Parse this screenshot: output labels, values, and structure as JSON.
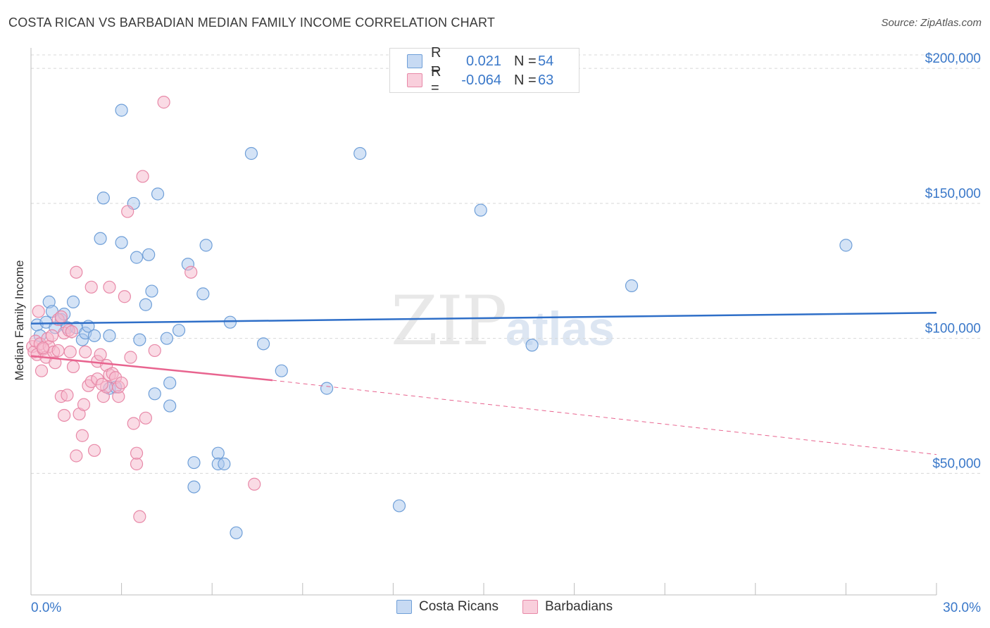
{
  "header": {
    "title": "COSTA RICAN VS BARBADIAN MEDIAN FAMILY INCOME CORRELATION CHART",
    "source": "Source: ZipAtlas.com"
  },
  "watermark": {
    "zip": "ZIP",
    "atlas": "atlas"
  },
  "legend_top": {
    "rows": [
      {
        "r_label": "R =",
        "r_value": "0.021",
        "n_label": "N =",
        "n_value": "54"
      },
      {
        "r_label": "R =",
        "r_value": "-0.064",
        "n_label": "N =",
        "n_value": "63"
      }
    ]
  },
  "legend_bottom": {
    "items": [
      {
        "label": "Costa Ricans"
      },
      {
        "label": "Barbadians"
      }
    ]
  },
  "colors": {
    "blue_fill": "#a9c8ee",
    "blue_stroke": "#6f9fd8",
    "blue_line": "#2f6fc8",
    "pink_fill": "#f5b8cc",
    "pink_stroke": "#e889a8",
    "pink_line": "#e8648f",
    "grid": "#d8d8d8",
    "axis_text": "#3a78c9"
  },
  "chart_data": {
    "type": "scatter",
    "title": "COSTA RICAN VS BARBADIAN MEDIAN FAMILY INCOME CORRELATION CHART",
    "xlabel": "",
    "ylabel": "Median Family Income",
    "xlim": [
      0,
      30
    ],
    "ylim": [
      5000,
      205000
    ],
    "x_tick_labels": [
      "0.0%",
      "30.0%"
    ],
    "y_ticks": [
      50000,
      100000,
      150000,
      200000
    ],
    "y_tick_labels": [
      "$50,000",
      "$100,000",
      "$150,000",
      "$200,000"
    ],
    "series": [
      {
        "name": "Costa Ricans",
        "r": 0.021,
        "n": 54,
        "trend": {
          "x": [
            0,
            30
          ],
          "y": [
            105500,
            109500
          ]
        },
        "points": [
          [
            0.2,
            105000
          ],
          [
            0.3,
            101000
          ],
          [
            0.5,
            106000
          ],
          [
            0.6,
            113500
          ],
          [
            0.7,
            110000
          ],
          [
            0.8,
            104000
          ],
          [
            1.0,
            107000
          ],
          [
            1.1,
            109000
          ],
          [
            1.2,
            104000
          ],
          [
            1.4,
            113500
          ],
          [
            1.5,
            104000
          ],
          [
            1.7,
            99500
          ],
          [
            1.8,
            102000
          ],
          [
            1.9,
            104500
          ],
          [
            2.1,
            101000
          ],
          [
            2.3,
            137000
          ],
          [
            2.4,
            152000
          ],
          [
            2.6,
            101000
          ],
          [
            2.6,
            81500
          ],
          [
            2.8,
            82000
          ],
          [
            3.0,
            184500
          ],
          [
            3.0,
            135500
          ],
          [
            3.4,
            150000
          ],
          [
            3.5,
            130000
          ],
          [
            3.6,
            99500
          ],
          [
            3.8,
            112500
          ],
          [
            3.9,
            131000
          ],
          [
            4.0,
            117500
          ],
          [
            4.1,
            79500
          ],
          [
            4.2,
            153500
          ],
          [
            4.5,
            100000
          ],
          [
            4.6,
            75000
          ],
          [
            4.6,
            83500
          ],
          [
            4.9,
            103000
          ],
          [
            5.2,
            127500
          ],
          [
            5.4,
            45000
          ],
          [
            5.4,
            54000
          ],
          [
            5.7,
            116500
          ],
          [
            5.8,
            134500
          ],
          [
            6.2,
            57500
          ],
          [
            6.2,
            53500
          ],
          [
            6.4,
            53500
          ],
          [
            6.6,
            106000
          ],
          [
            6.8,
            28000
          ],
          [
            7.3,
            168500
          ],
          [
            7.7,
            98000
          ],
          [
            8.3,
            88000
          ],
          [
            9.8,
            81500
          ],
          [
            10.9,
            168500
          ],
          [
            12.2,
            38000
          ],
          [
            14.9,
            147500
          ],
          [
            16.6,
            97500
          ],
          [
            19.9,
            119500
          ],
          [
            27.0,
            134500
          ]
        ]
      },
      {
        "name": "Barbadians",
        "r": -0.064,
        "n": 63,
        "trend": {
          "x": [
            0,
            8
          ],
          "y": [
            93500,
            84500
          ]
        },
        "trend_extrapolated": {
          "x": [
            8,
            30
          ],
          "y": [
            84500,
            57000
          ]
        },
        "points": [
          [
            0.05,
            97000
          ],
          [
            0.1,
            95000
          ],
          [
            0.15,
            99000
          ],
          [
            0.2,
            94000
          ],
          [
            0.25,
            110000
          ],
          [
            0.3,
            98000
          ],
          [
            0.35,
            88000
          ],
          [
            0.4,
            96000
          ],
          [
            0.5,
            93000
          ],
          [
            0.55,
            100000
          ],
          [
            0.6,
            97000
          ],
          [
            0.7,
            101000
          ],
          [
            0.75,
            95000
          ],
          [
            0.8,
            91000
          ],
          [
            0.9,
            107000
          ],
          [
            1.0,
            108000
          ],
          [
            1.0,
            78500
          ],
          [
            1.1,
            102000
          ],
          [
            1.1,
            71500
          ],
          [
            1.2,
            79000
          ],
          [
            1.25,
            103000
          ],
          [
            1.3,
            95000
          ],
          [
            1.4,
            89500
          ],
          [
            1.5,
            124500
          ],
          [
            1.5,
            56500
          ],
          [
            1.6,
            72000
          ],
          [
            1.7,
            64000
          ],
          [
            1.75,
            75500
          ],
          [
            1.8,
            95000
          ],
          [
            1.9,
            82500
          ],
          [
            2.0,
            84000
          ],
          [
            2.0,
            119000
          ],
          [
            2.1,
            58500
          ],
          [
            2.2,
            91500
          ],
          [
            2.2,
            85000
          ],
          [
            2.3,
            94000
          ],
          [
            2.4,
            78500
          ],
          [
            2.5,
            82000
          ],
          [
            2.5,
            90000
          ],
          [
            2.6,
            86500
          ],
          [
            2.6,
            119000
          ],
          [
            2.7,
            87000
          ],
          [
            2.8,
            85500
          ],
          [
            2.9,
            78500
          ],
          [
            2.9,
            82000
          ],
          [
            3.0,
            83500
          ],
          [
            3.1,
            115500
          ],
          [
            3.2,
            147000
          ],
          [
            3.3,
            93000
          ],
          [
            3.4,
            68500
          ],
          [
            3.5,
            53500
          ],
          [
            3.5,
            57500
          ],
          [
            3.6,
            34000
          ],
          [
            3.7,
            160000
          ],
          [
            3.8,
            70500
          ],
          [
            4.1,
            95500
          ],
          [
            4.4,
            187500
          ],
          [
            5.3,
            124500
          ],
          [
            7.4,
            46000
          ],
          [
            0.4,
            96500
          ],
          [
            0.9,
            95500
          ],
          [
            1.35,
            102500
          ],
          [
            2.35,
            83000
          ]
        ]
      }
    ]
  }
}
